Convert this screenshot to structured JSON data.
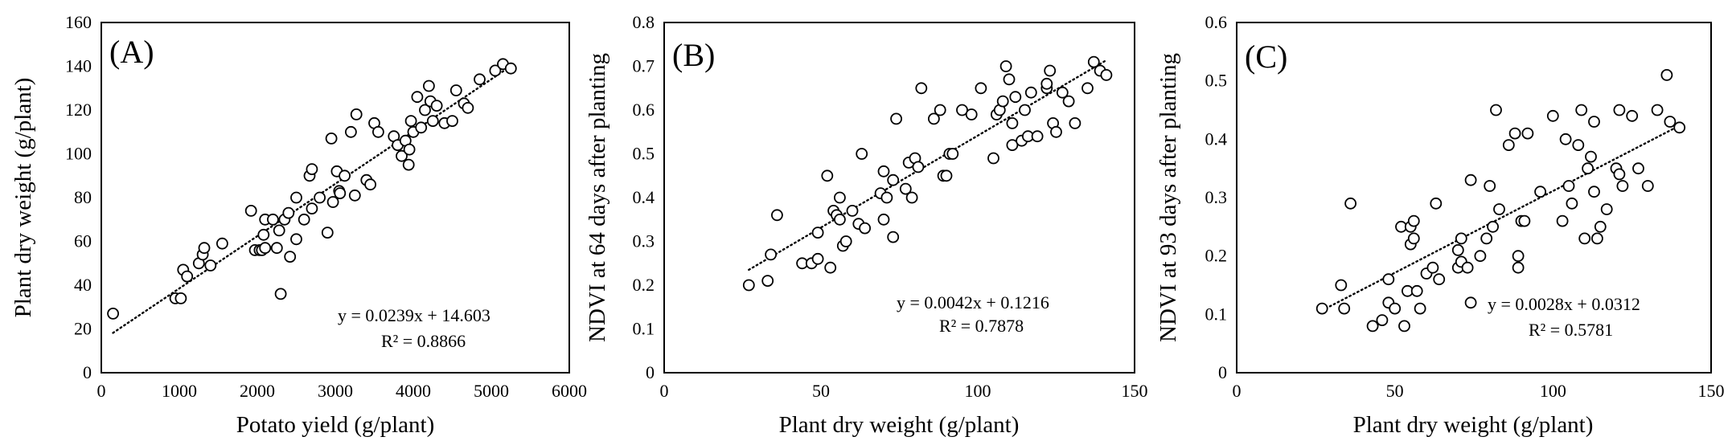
{
  "chart_data": [
    {
      "type": "scatter",
      "panel_label": "(A)",
      "xlabel": "Potato yield (g/plant)",
      "ylabel": "Plant dry weight (g/plant)",
      "xlim": [
        0,
        6000
      ],
      "ylim": [
        0,
        160
      ],
      "x_ticks": [
        0,
        1000,
        2000,
        3000,
        4000,
        5000,
        6000
      ],
      "y_ticks": [
        0,
        20,
        40,
        60,
        80,
        100,
        120,
        140,
        160
      ],
      "x_tick_labels": [
        "0",
        "1000",
        "2000",
        "3000",
        "4000",
        "5000",
        "6000"
      ],
      "y_tick_labels": [
        "0",
        "20",
        "40",
        "60",
        "80",
        "100",
        "120",
        "140",
        "160"
      ],
      "trendline": {
        "slope": 0.0239,
        "intercept": 14.603,
        "x_range": [
          150,
          5250
        ]
      },
      "equation": "y = 0.0239x + 14.603",
      "r_squared": "R² = 0.8866",
      "points": [
        [
          150,
          27
        ],
        [
          950,
          34
        ],
        [
          1020,
          34
        ],
        [
          1050,
          47
        ],
        [
          1100,
          44
        ],
        [
          1250,
          50
        ],
        [
          1300,
          54
        ],
        [
          1320,
          57
        ],
        [
          1400,
          49
        ],
        [
          1550,
          59
        ],
        [
          1920,
          74
        ],
        [
          1970,
          56
        ],
        [
          2030,
          56
        ],
        [
          2060,
          56
        ],
        [
          2100,
          57
        ],
        [
          2080,
          63
        ],
        [
          2100,
          70
        ],
        [
          2200,
          70
        ],
        [
          2250,
          57
        ],
        [
          2300,
          36
        ],
        [
          2280,
          65
        ],
        [
          2350,
          70
        ],
        [
          2400,
          73
        ],
        [
          2420,
          53
        ],
        [
          2500,
          61
        ],
        [
          2500,
          80
        ],
        [
          2600,
          70
        ],
        [
          2670,
          90
        ],
        [
          2700,
          93
        ],
        [
          2700,
          75
        ],
        [
          2800,
          80
        ],
        [
          2900,
          64
        ],
        [
          2950,
          107
        ],
        [
          2970,
          78
        ],
        [
          3020,
          92
        ],
        [
          3050,
          83
        ],
        [
          3060,
          82
        ],
        [
          3120,
          90
        ],
        [
          3200,
          110
        ],
        [
          3250,
          81
        ],
        [
          3270,
          118
        ],
        [
          3400,
          88
        ],
        [
          3450,
          86
        ],
        [
          3500,
          114
        ],
        [
          3550,
          110
        ],
        [
          3750,
          108
        ],
        [
          3800,
          104
        ],
        [
          3850,
          99
        ],
        [
          3900,
          106
        ],
        [
          3940,
          95
        ],
        [
          3950,
          102
        ],
        [
          3970,
          115
        ],
        [
          4000,
          110
        ],
        [
          4050,
          126
        ],
        [
          4100,
          112
        ],
        [
          4150,
          120
        ],
        [
          4200,
          131
        ],
        [
          4220,
          124
        ],
        [
          4250,
          115
        ],
        [
          4300,
          122
        ],
        [
          4400,
          114
        ],
        [
          4500,
          115
        ],
        [
          4550,
          129
        ],
        [
          4650,
          123
        ],
        [
          4700,
          121
        ],
        [
          4850,
          134
        ],
        [
          5050,
          138
        ],
        [
          5150,
          141
        ],
        [
          5250,
          139
        ]
      ]
    },
    {
      "type": "scatter",
      "panel_label": "(B)",
      "xlabel": "Plant dry weight (g/plant)",
      "ylabel": "NDVI at 64 days after planting",
      "xlim": [
        0,
        150
      ],
      "ylim": [
        0,
        0.8
      ],
      "x_ticks": [
        0,
        50,
        100,
        150
      ],
      "y_ticks": [
        0,
        0.1,
        0.2,
        0.3,
        0.4,
        0.5,
        0.6,
        0.7,
        0.8
      ],
      "x_tick_labels": [
        "0",
        "50",
        "100",
        "150"
      ],
      "y_tick_labels": [
        "0",
        "0.1",
        "0.2",
        "0.3",
        "0.4",
        "0.5",
        "0.6",
        "0.7",
        "0.8"
      ],
      "trendline": {
        "slope": 0.0042,
        "intercept": 0.1216,
        "x_range": [
          27,
          141
        ]
      },
      "equation": "y = 0.0042x + 0.1216",
      "r_squared": "R² = 0.7878",
      "points": [
        [
          27,
          0.2
        ],
        [
          33,
          0.21
        ],
        [
          34,
          0.27
        ],
        [
          36,
          0.36
        ],
        [
          44,
          0.25
        ],
        [
          47,
          0.25
        ],
        [
          49,
          0.26
        ],
        [
          49,
          0.32
        ],
        [
          52,
          0.45
        ],
        [
          53,
          0.24
        ],
        [
          54,
          0.37
        ],
        [
          55,
          0.36
        ],
        [
          56,
          0.35
        ],
        [
          56,
          0.4
        ],
        [
          57,
          0.29
        ],
        [
          58,
          0.3
        ],
        [
          60,
          0.37
        ],
        [
          62,
          0.34
        ],
        [
          63,
          0.5
        ],
        [
          64,
          0.33
        ],
        [
          69,
          0.41
        ],
        [
          70,
          0.35
        ],
        [
          70,
          0.46
        ],
        [
          71,
          0.4
        ],
        [
          73,
          0.31
        ],
        [
          73,
          0.44
        ],
        [
          74,
          0.58
        ],
        [
          77,
          0.42
        ],
        [
          78,
          0.48
        ],
        [
          79,
          0.4
        ],
        [
          80,
          0.49
        ],
        [
          81,
          0.47
        ],
        [
          82,
          0.65
        ],
        [
          86,
          0.58
        ],
        [
          88,
          0.6
        ],
        [
          89,
          0.45
        ],
        [
          90,
          0.45
        ],
        [
          91,
          0.5
        ],
        [
          92,
          0.5
        ],
        [
          95,
          0.6
        ],
        [
          98,
          0.59
        ],
        [
          101,
          0.65
        ],
        [
          105,
          0.49
        ],
        [
          106,
          0.59
        ],
        [
          107,
          0.6
        ],
        [
          108,
          0.62
        ],
        [
          109,
          0.7
        ],
        [
          110,
          0.67
        ],
        [
          111,
          0.52
        ],
        [
          111,
          0.57
        ],
        [
          112,
          0.63
        ],
        [
          114,
          0.53
        ],
        [
          115,
          0.6
        ],
        [
          116,
          0.54
        ],
        [
          117,
          0.64
        ],
        [
          119,
          0.54
        ],
        [
          122,
          0.65
        ],
        [
          122,
          0.66
        ],
        [
          123,
          0.69
        ],
        [
          124,
          0.57
        ],
        [
          125,
          0.55
        ],
        [
          127,
          0.64
        ],
        [
          129,
          0.62
        ],
        [
          131,
          0.57
        ],
        [
          135,
          0.65
        ],
        [
          137,
          0.71
        ],
        [
          139,
          0.69
        ],
        [
          141,
          0.68
        ]
      ]
    },
    {
      "type": "scatter",
      "panel_label": "(C)",
      "xlabel": "Plant dry weight (g/plant)",
      "ylabel": "NDVI at 93 days after planting",
      "xlim": [
        0,
        150
      ],
      "ylim": [
        0,
        0.6
      ],
      "x_ticks": [
        0,
        50,
        100,
        150
      ],
      "y_ticks": [
        0,
        0.1,
        0.2,
        0.3,
        0.4,
        0.5,
        0.6
      ],
      "x_tick_labels": [
        "0",
        "50",
        "100",
        "150"
      ],
      "y_tick_labels": [
        "0",
        "0.1",
        "0.2",
        "0.3",
        "0.4",
        "0.5",
        "0.6"
      ],
      "trendline": {
        "slope": 0.0028,
        "intercept": 0.0312,
        "x_range": [
          27,
          141
        ]
      },
      "equation": "y = 0.0028x + 0.0312",
      "r_squared": "R² = 0.5781",
      "points": [
        [
          27,
          0.11
        ],
        [
          33,
          0.15
        ],
        [
          34,
          0.11
        ],
        [
          36,
          0.29
        ],
        [
          43,
          0.08
        ],
        [
          46,
          0.09
        ],
        [
          48,
          0.12
        ],
        [
          48,
          0.16
        ],
        [
          50,
          0.11
        ],
        [
          52,
          0.25
        ],
        [
          53,
          0.08
        ],
        [
          54,
          0.14
        ],
        [
          55,
          0.22
        ],
        [
          55,
          0.25
        ],
        [
          56,
          0.26
        ],
        [
          56,
          0.23
        ],
        [
          57,
          0.14
        ],
        [
          58,
          0.11
        ],
        [
          60,
          0.17
        ],
        [
          62,
          0.18
        ],
        [
          63,
          0.29
        ],
        [
          64,
          0.16
        ],
        [
          70,
          0.21
        ],
        [
          70,
          0.18
        ],
        [
          71,
          0.19
        ],
        [
          71,
          0.23
        ],
        [
          73,
          0.18
        ],
        [
          74,
          0.33
        ],
        [
          74,
          0.12
        ],
        [
          77,
          0.2
        ],
        [
          79,
          0.23
        ],
        [
          80,
          0.32
        ],
        [
          81,
          0.25
        ],
        [
          82,
          0.45
        ],
        [
          83,
          0.28
        ],
        [
          86,
          0.39
        ],
        [
          88,
          0.41
        ],
        [
          89,
          0.18
        ],
        [
          89,
          0.2
        ],
        [
          90,
          0.26
        ],
        [
          91,
          0.26
        ],
        [
          92,
          0.41
        ],
        [
          96,
          0.31
        ],
        [
          100,
          0.44
        ],
        [
          103,
          0.26
        ],
        [
          104,
          0.4
        ],
        [
          105,
          0.32
        ],
        [
          106,
          0.29
        ],
        [
          108,
          0.39
        ],
        [
          109,
          0.45
        ],
        [
          110,
          0.23
        ],
        [
          111,
          0.35
        ],
        [
          112,
          0.37
        ],
        [
          113,
          0.31
        ],
        [
          113,
          0.43
        ],
        [
          114,
          0.23
        ],
        [
          115,
          0.25
        ],
        [
          117,
          0.28
        ],
        [
          120,
          0.35
        ],
        [
          121,
          0.45
        ],
        [
          121,
          0.34
        ],
        [
          122,
          0.32
        ],
        [
          125,
          0.44
        ],
        [
          127,
          0.35
        ],
        [
          130,
          0.32
        ],
        [
          133,
          0.45
        ],
        [
          136,
          0.51
        ],
        [
          137,
          0.43
        ],
        [
          140,
          0.42
        ]
      ]
    }
  ]
}
